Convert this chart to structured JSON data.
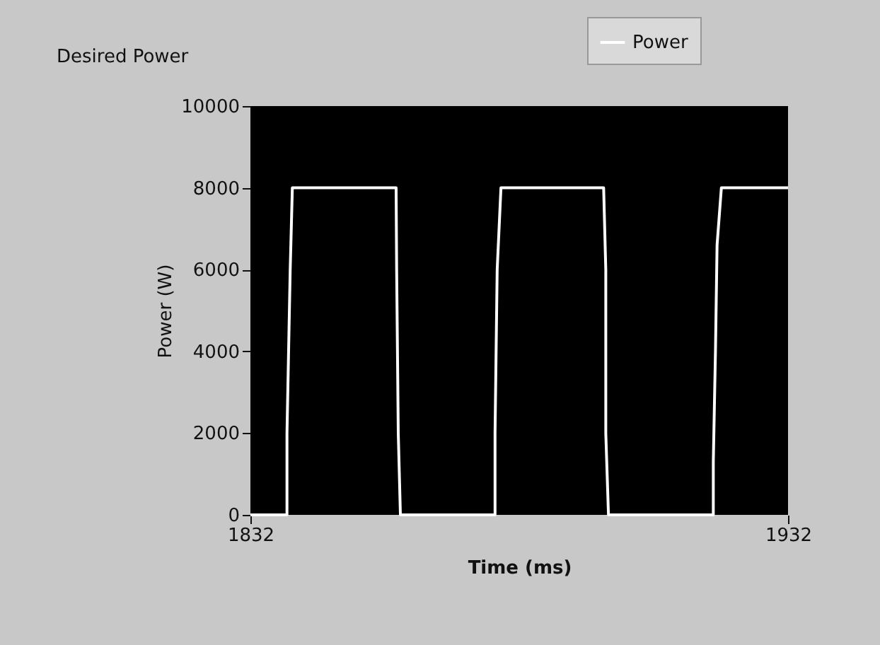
{
  "chart_data": {
    "type": "line",
    "title": "Desired Power",
    "xlabel": "Time (ms)",
    "ylabel": "Power (W)",
    "x": [
      1832,
      1838.8,
      1838.8,
      1839.4,
      1839.8,
      1859.1,
      1859.2,
      1859.5,
      1859.9,
      1877.5,
      1877.5,
      1877.9,
      1878.6,
      1897.7,
      1898.1,
      1898.1,
      1898.6,
      1918.1,
      1918.1,
      1918.5,
      1918.8,
      1919.6,
      1932
    ],
    "series": [
      {
        "name": "Power",
        "color": "#ffffff",
        "values": [
          0,
          0,
          2000,
          6000,
          8000,
          8000,
          6000,
          2000,
          0,
          0,
          2000,
          6000,
          8000,
          8000,
          6000,
          2000,
          0,
          0,
          1300,
          4000,
          6600,
          8000,
          8000
        ]
      }
    ],
    "xlim": [
      1832,
      1932
    ],
    "xticks": [
      1832,
      1932
    ],
    "ylim": [
      0,
      10000
    ],
    "yticks": [
      0,
      2000,
      4000,
      6000,
      8000,
      10000
    ],
    "grid": false,
    "legend": "top right",
    "marker": "none",
    "line_style": "solid"
  }
}
